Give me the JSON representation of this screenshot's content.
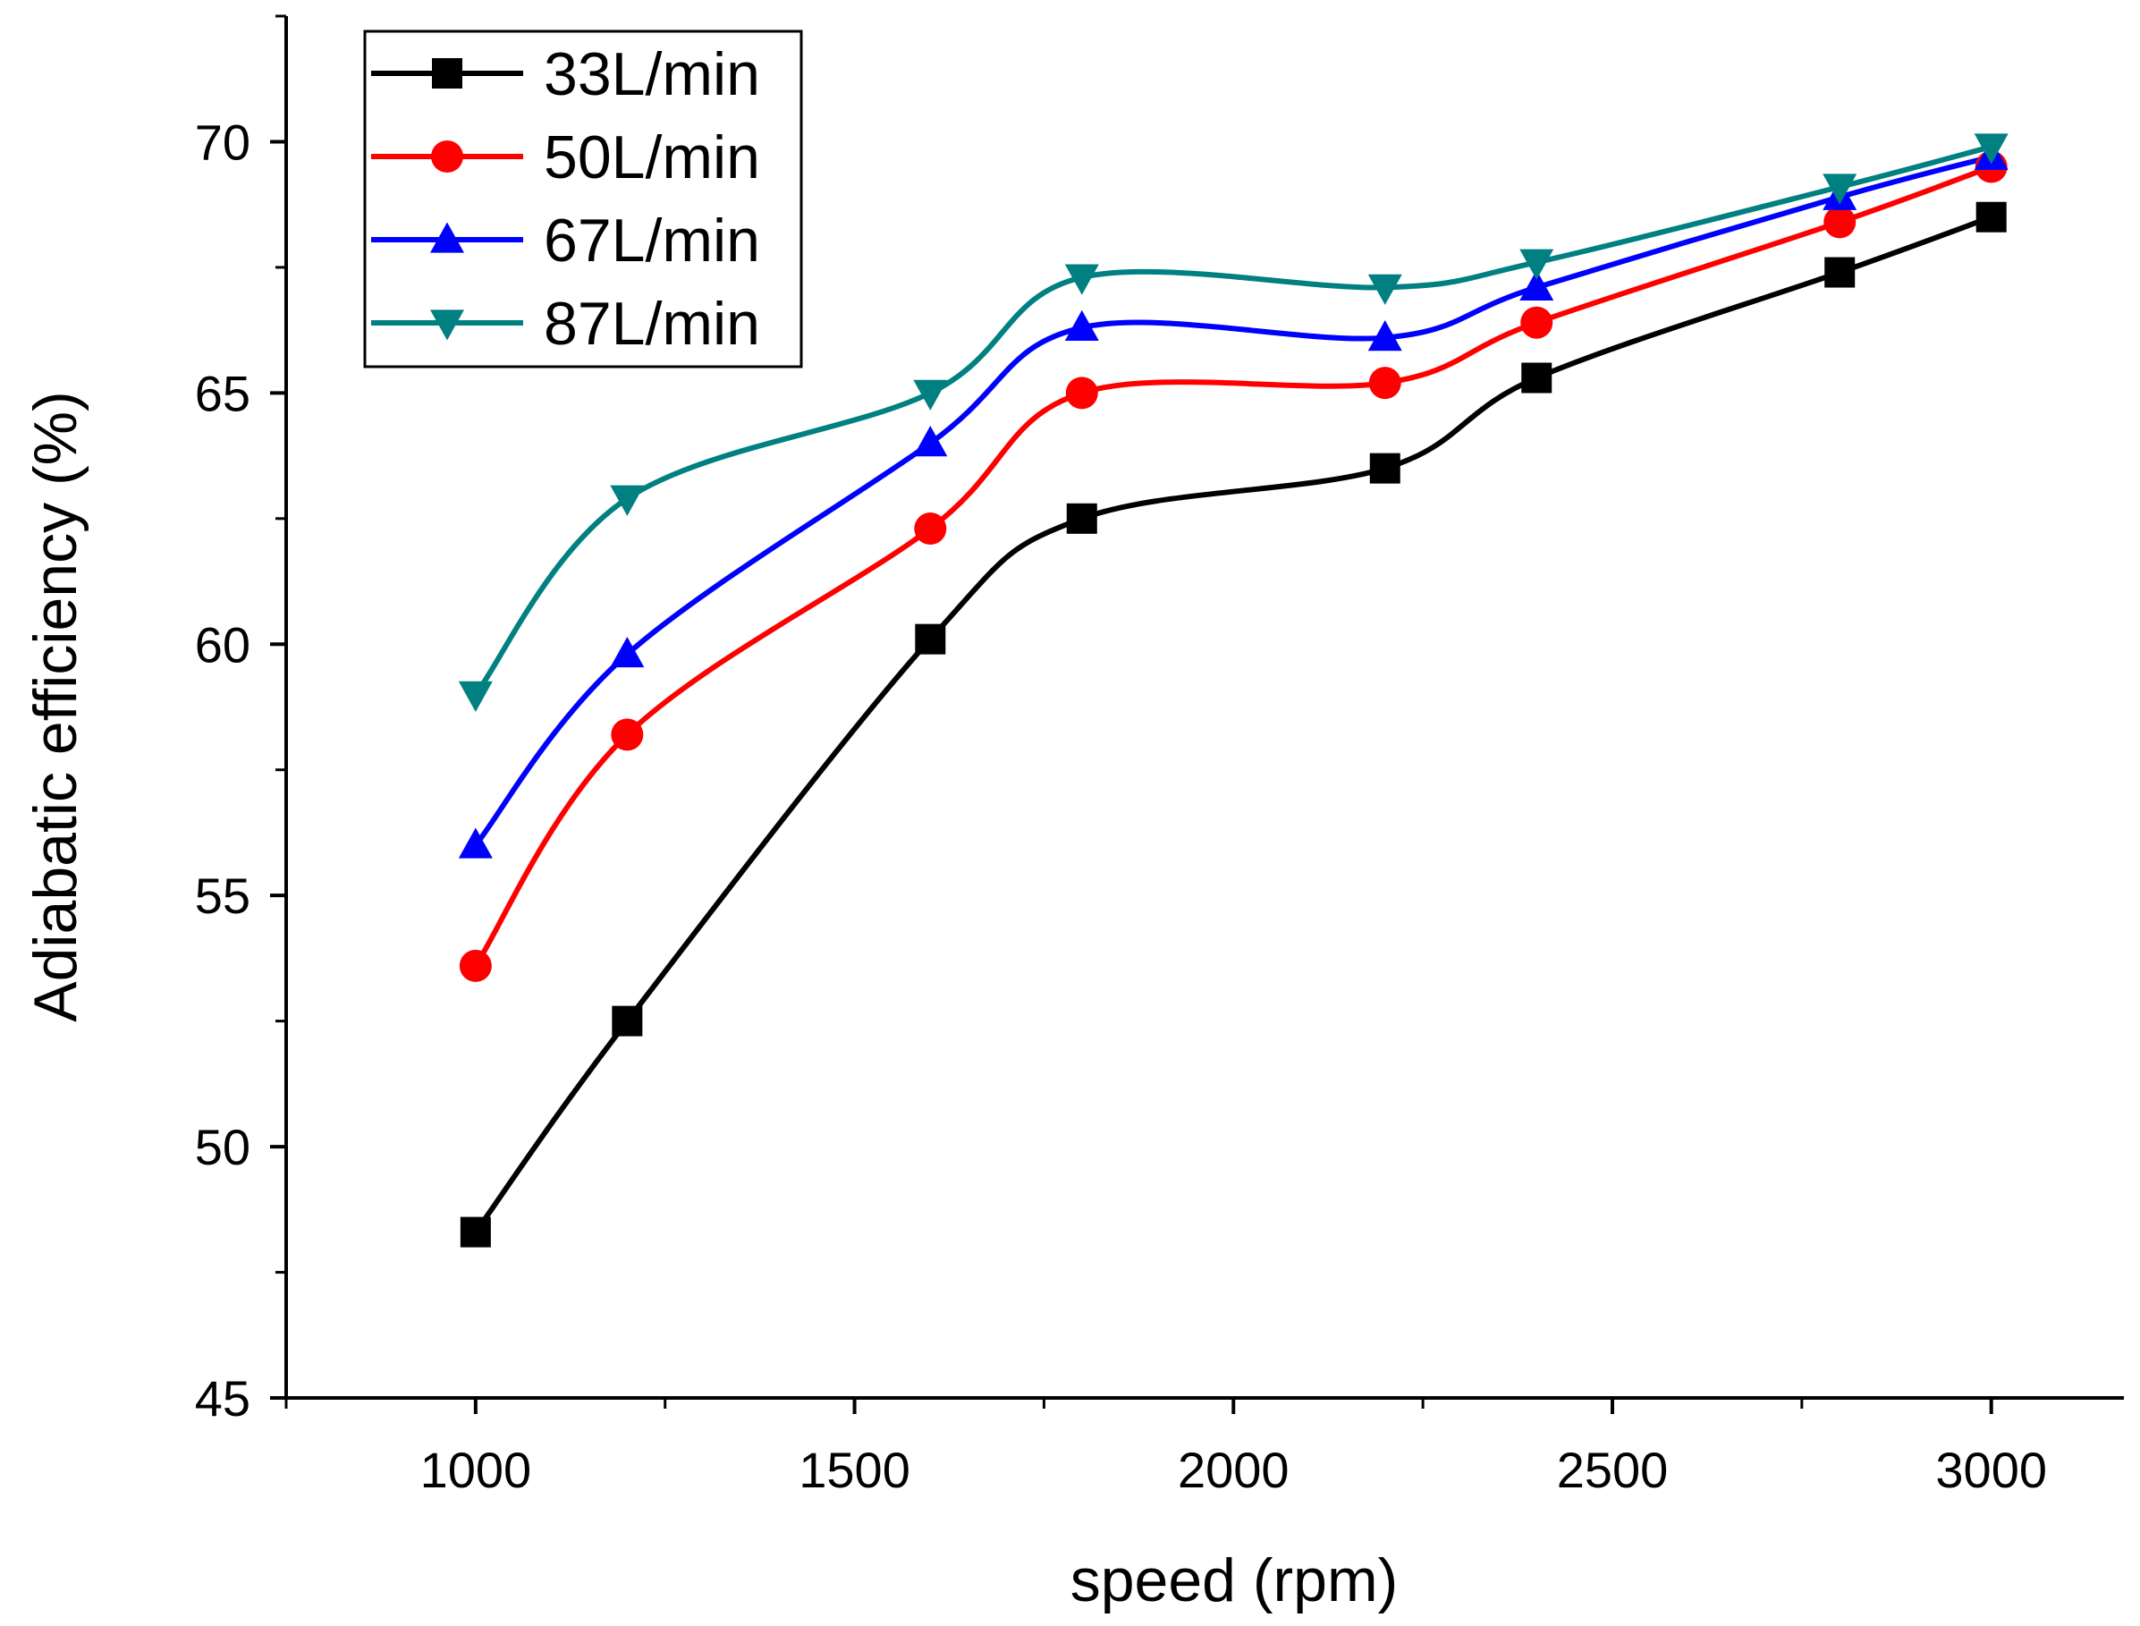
{
  "chart_data": {
    "type": "line",
    "title": "",
    "xlabel": "speed (rpm)",
    "ylabel": "Adiabatic efficiency (%)",
    "xlim": [
      750,
      3175
    ],
    "ylim": [
      45,
      72.5
    ],
    "xticks": [
      1000,
      1500,
      2000,
      2500,
      3000
    ],
    "yticks": [
      45,
      50,
      55,
      60,
      65,
      70
    ],
    "xtick_labels": [
      "1000",
      "1500",
      "2000",
      "2500",
      "3000"
    ],
    "ytick_labels": [
      "45",
      "50",
      "55",
      "60",
      "65",
      "70"
    ],
    "x": [
      1000,
      1200,
      1600,
      1800,
      2200,
      2400,
      2800,
      3000
    ],
    "legend_position": "top-left",
    "grid": false,
    "series": [
      {
        "name": "33L/min",
        "color": "#000000",
        "marker": "square",
        "values": [
          48.3,
          52.5,
          60.1,
          62.5,
          63.5,
          65.3,
          67.4,
          68.5
        ]
      },
      {
        "name": "50L/min",
        "color": "#ff0000",
        "marker": "circle",
        "values": [
          53.6,
          58.2,
          62.3,
          65.0,
          65.2,
          66.4,
          68.4,
          69.5
        ]
      },
      {
        "name": "67L/min",
        "color": "#0000ff",
        "marker": "triangle-up",
        "values": [
          56.0,
          59.8,
          64.0,
          66.3,
          66.1,
          67.1,
          68.9,
          69.7
        ]
      },
      {
        "name": "87L/min",
        "color": "#008080",
        "marker": "triangle-down",
        "values": [
          59.0,
          62.9,
          65.0,
          67.3,
          67.1,
          67.6,
          69.1,
          69.9
        ]
      }
    ]
  }
}
